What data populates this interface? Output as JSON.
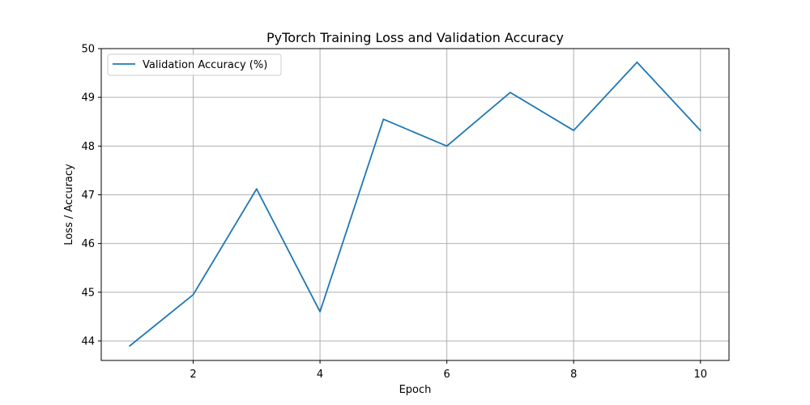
{
  "chart_data": {
    "type": "line",
    "title": "PyTorch Training Loss and Validation Accuracy",
    "xlabel": "Epoch",
    "ylabel": "Loss / Accuracy",
    "xlim": [
      0.55,
      10.45
    ],
    "ylim": [
      43.6,
      50
    ],
    "x_ticks": [
      2,
      4,
      6,
      8,
      10
    ],
    "y_ticks": [
      44,
      45,
      46,
      47,
      48,
      49,
      50
    ],
    "grid": true,
    "legend_position": "upper left",
    "x": [
      1,
      2,
      3,
      4,
      5,
      6,
      7,
      8,
      9,
      10
    ],
    "series": [
      {
        "name": "Validation Accuracy (%)",
        "color": "#1f77b4",
        "values": [
          43.9,
          44.95,
          47.12,
          44.6,
          48.55,
          48.0,
          49.1,
          48.32,
          49.72,
          48.32
        ]
      }
    ]
  }
}
